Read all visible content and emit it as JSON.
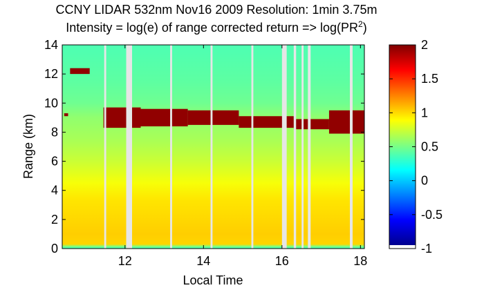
{
  "chart_data": {
    "type": "heatmap",
    "title_line1": "CCNY LIDAR 532nm Nov16 2009 Resolution: 1min 3.75m",
    "title_line2_prefix": "Intensity = log(e) of range corrected return => log(PR",
    "title_line2_sup": "2",
    "title_line2_suffix": ")",
    "xlabel": "Local Time",
    "ylabel": "Range (km)",
    "xlim": [
      10.4,
      18.1
    ],
    "ylim": [
      0,
      14
    ],
    "xticks": [
      {
        "value": 12,
        "label": "12"
      },
      {
        "value": 14,
        "label": "14"
      },
      {
        "value": 16,
        "label": "16"
      },
      {
        "value": 18,
        "label": "18"
      }
    ],
    "yticks": [
      {
        "value": 0,
        "label": "0"
      },
      {
        "value": 2,
        "label": "2"
      },
      {
        "value": 4,
        "label": "4"
      },
      {
        "value": 6,
        "label": "6"
      },
      {
        "value": 8,
        "label": "8"
      },
      {
        "value": 10,
        "label": "10"
      },
      {
        "value": 12,
        "label": "12"
      },
      {
        "value": 14,
        "label": "14"
      }
    ],
    "colorbar": {
      "range": [
        -1,
        2
      ],
      "colormap": "jet",
      "ticks": [
        {
          "value": 2,
          "label": "2"
        },
        {
          "value": 1.5,
          "label": "1.5"
        },
        {
          "value": 1,
          "label": "1"
        },
        {
          "value": 0.5,
          "label": "0.5"
        },
        {
          "value": 0,
          "label": "0"
        },
        {
          "value": -0.5,
          "label": "-0.5"
        },
        {
          "value": -1,
          "label": "-1"
        }
      ]
    },
    "intensity_profile": [
      {
        "range_km": 0.0,
        "value": 0.3
      },
      {
        "range_km": 0.15,
        "value": 0.5
      },
      {
        "range_km": 0.3,
        "value": 1.0
      },
      {
        "range_km": 1.0,
        "value": 1.02
      },
      {
        "range_km": 3.3,
        "value": 0.95
      },
      {
        "range_km": 4.5,
        "value": 0.85
      },
      {
        "range_km": 6.0,
        "value": 0.72
      },
      {
        "range_km": 7.5,
        "value": 0.62
      },
      {
        "range_km": 9.0,
        "value": 0.55
      },
      {
        "range_km": 10.0,
        "value": 0.45
      },
      {
        "range_km": 11.5,
        "value": 0.4
      },
      {
        "range_km": 14.0,
        "value": 0.35
      }
    ],
    "cloud_layer": {
      "value": 1.95,
      "segments": [
        {
          "x_start": 11.45,
          "x_end": 12.4,
          "base_km": 8.3,
          "top_km": 9.7
        },
        {
          "x_start": 12.4,
          "x_end": 13.6,
          "base_km": 8.4,
          "top_km": 9.6
        },
        {
          "x_start": 13.6,
          "x_end": 14.9,
          "base_km": 8.5,
          "top_km": 9.5
        },
        {
          "x_start": 14.9,
          "x_end": 16.3,
          "base_km": 8.3,
          "top_km": 9.1
        },
        {
          "x_start": 16.3,
          "x_end": 17.2,
          "base_km": 8.2,
          "top_km": 8.9
        },
        {
          "x_start": 17.2,
          "x_end": 18.1,
          "base_km": 7.9,
          "top_km": 9.5
        }
      ],
      "isolated_patches": [
        {
          "x_start": 10.45,
          "x_end": 10.55,
          "base_km": 9.1,
          "top_km": 9.3
        },
        {
          "x_start": 10.6,
          "x_end": 11.1,
          "base_km": 12.0,
          "top_km": 12.4
        }
      ]
    },
    "data_gaps": [
      {
        "x_start": 11.47,
        "x_end": 11.52
      },
      {
        "x_start": 12.03,
        "x_end": 12.18
      },
      {
        "x_start": 13.15,
        "x_end": 13.2
      },
      {
        "x_start": 14.18,
        "x_end": 14.23
      },
      {
        "x_start": 15.22,
        "x_end": 15.27
      },
      {
        "x_start": 16.0,
        "x_end": 16.12
      },
      {
        "x_start": 16.3,
        "x_end": 16.36
      },
      {
        "x_start": 16.5,
        "x_end": 16.55
      },
      {
        "x_start": 16.66,
        "x_end": 16.73
      },
      {
        "x_start": 17.73,
        "x_end": 17.8
      }
    ]
  }
}
